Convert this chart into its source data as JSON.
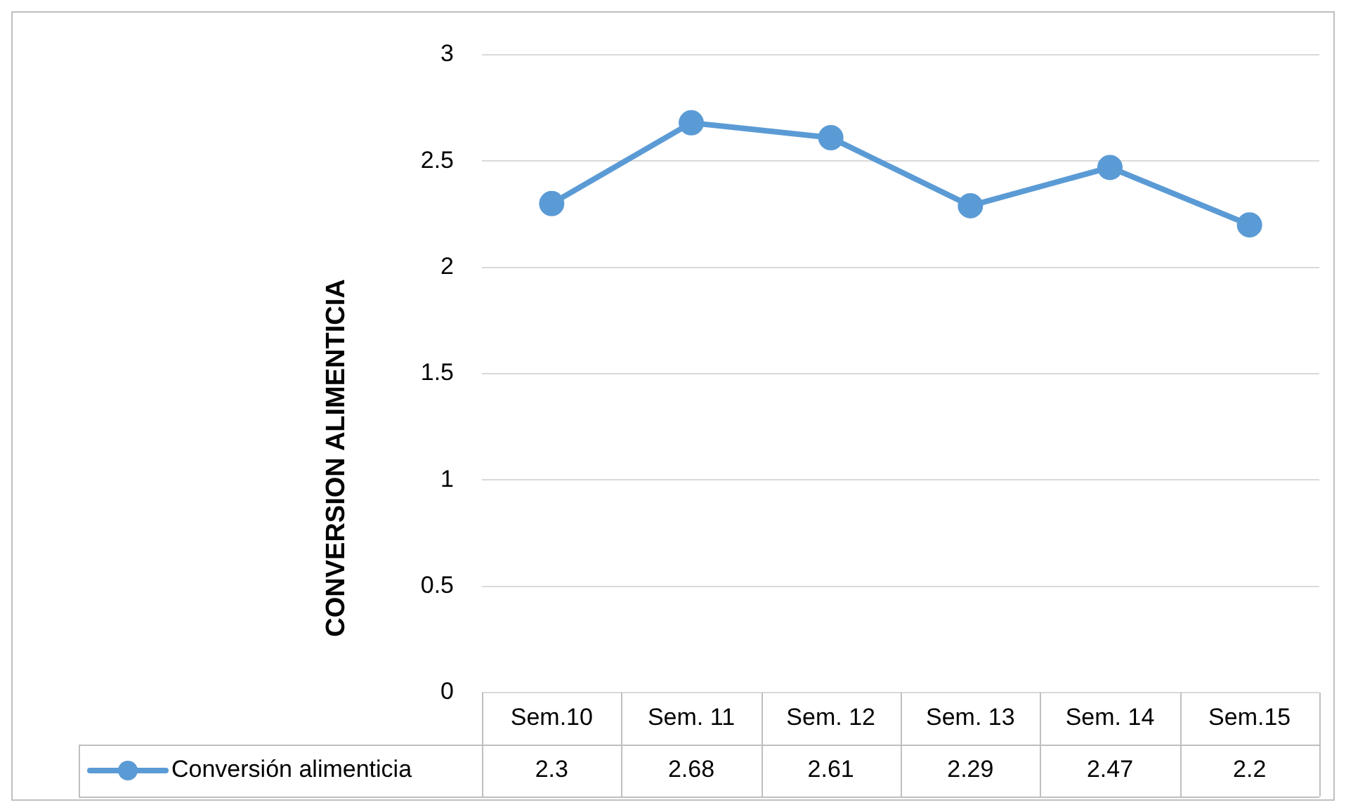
{
  "chart_data": {
    "type": "line",
    "ylabel": "CONVERSION ALIMENTICIA",
    "categories": [
      "Sem.10",
      "Sem. 11",
      "Sem. 12",
      "Sem. 13",
      "Sem. 14",
      "Sem.15"
    ],
    "series": [
      {
        "name": "Conversión alimenticia",
        "color": "#5b9bd5",
        "values": [
          2.3,
          2.68,
          2.61,
          2.29,
          2.47,
          2.2
        ]
      }
    ],
    "ylim": [
      0,
      3
    ],
    "yticks": [
      0,
      0.5,
      1,
      1.5,
      2,
      2.5,
      3
    ],
    "grid": "y",
    "legend": "bottom",
    "data_labels": true,
    "marker": "circle",
    "line_style": "solid"
  }
}
